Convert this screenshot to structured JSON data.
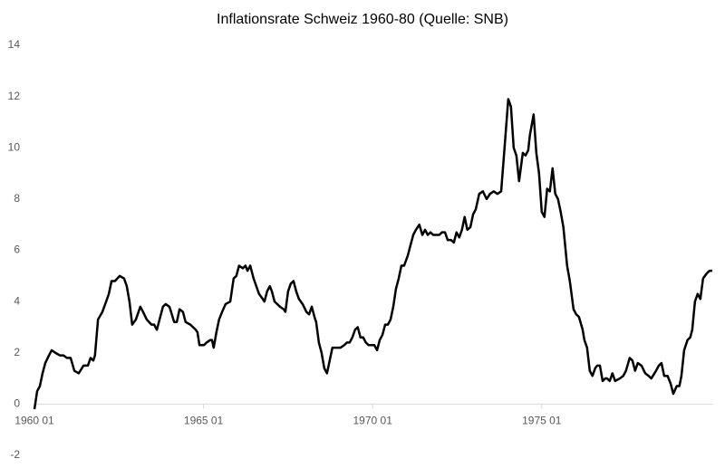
{
  "chart_data": {
    "type": "line",
    "title": "Inflationsrate Schweiz 1960-80 (Quelle: SNB)",
    "x": [
      1960.0,
      1960.08,
      1960.16,
      1960.24,
      1960.32,
      1960.43,
      1960.51,
      1960.62,
      1960.75,
      1960.86,
      1960.96,
      1961.07,
      1961.18,
      1961.31,
      1961.45,
      1961.58,
      1961.66,
      1961.74,
      1961.79,
      1961.88,
      1962.01,
      1962.12,
      1962.2,
      1962.28,
      1962.38,
      1962.52,
      1962.65,
      1962.73,
      1962.81,
      1962.89,
      1963.0,
      1963.13,
      1963.21,
      1963.32,
      1963.46,
      1963.54,
      1963.62,
      1963.72,
      1963.8,
      1963.88,
      1963.99,
      1964.04,
      1964.13,
      1964.21,
      1964.29,
      1964.39,
      1964.47,
      1964.61,
      1964.77,
      1964.82,
      1964.88,
      1965.01,
      1965.09,
      1965.2,
      1965.25,
      1965.3,
      1965.38,
      1965.46,
      1965.55,
      1965.65,
      1965.79,
      1965.89,
      1965.97,
      1966.05,
      1966.16,
      1966.24,
      1966.3,
      1966.38,
      1966.48,
      1966.56,
      1966.64,
      1966.75,
      1966.8,
      1966.88,
      1966.96,
      1967.02,
      1967.1,
      1967.18,
      1967.26,
      1967.37,
      1967.42,
      1967.5,
      1967.58,
      1967.66,
      1967.74,
      1967.82,
      1967.93,
      1968.04,
      1968.12,
      1968.2,
      1968.28,
      1968.33,
      1968.41,
      1968.49,
      1968.57,
      1968.65,
      1968.73,
      1968.81,
      1968.95,
      1969.05,
      1969.16,
      1969.24,
      1969.32,
      1969.4,
      1969.48,
      1969.56,
      1969.64,
      1969.72,
      1969.8,
      1969.88,
      1969.97,
      1970.05,
      1970.13,
      1970.21,
      1970.29,
      1970.37,
      1970.45,
      1970.53,
      1970.61,
      1970.69,
      1970.77,
      1970.85,
      1970.93,
      1971.04,
      1971.12,
      1971.2,
      1971.28,
      1971.38,
      1971.47,
      1971.55,
      1971.63,
      1971.71,
      1971.79,
      1971.89,
      1971.97,
      1972.05,
      1972.14,
      1972.22,
      1972.32,
      1972.4,
      1972.48,
      1972.56,
      1972.64,
      1972.72,
      1972.8,
      1972.89,
      1972.97,
      1973.05,
      1973.15,
      1973.26,
      1973.37,
      1973.47,
      1973.58,
      1973.69,
      1973.8,
      1973.9,
      1974.01,
      1974.09,
      1974.17,
      1974.25,
      1974.33,
      1974.44,
      1974.52,
      1974.6,
      1974.65,
      1974.76,
      1974.84,
      1974.92,
      1975.0,
      1975.08,
      1975.16,
      1975.24,
      1975.32,
      1975.4,
      1975.48,
      1975.56,
      1975.64,
      1975.75,
      1975.83,
      1975.94,
      1976.02,
      1976.1,
      1976.21,
      1976.26,
      1976.34,
      1976.42,
      1976.5,
      1976.58,
      1976.64,
      1976.72,
      1976.8,
      1976.88,
      1976.93,
      1977.01,
      1977.09,
      1977.17,
      1977.31,
      1977.41,
      1977.49,
      1977.6,
      1977.68,
      1977.76,
      1977.84,
      1977.95,
      1978.06,
      1978.16,
      1978.24,
      1978.38,
      1978.46,
      1978.54,
      1978.62,
      1978.72,
      1978.81,
      1978.89,
      1978.99,
      1979.07,
      1979.13,
      1979.21,
      1979.31,
      1979.39,
      1979.45,
      1979.53,
      1979.61,
      1979.69,
      1979.77,
      1979.88,
      1979.96,
      1980.04
    ],
    "values": [
      -0.2,
      0.5,
      0.7,
      1.2,
      1.6,
      1.9,
      2.1,
      2.0,
      1.9,
      1.9,
      1.8,
      1.8,
      1.3,
      1.2,
      1.5,
      1.5,
      1.8,
      1.7,
      1.9,
      3.3,
      3.6,
      4.0,
      4.3,
      4.8,
      4.8,
      5.0,
      4.9,
      4.6,
      4.0,
      3.1,
      3.3,
      3.8,
      3.6,
      3.3,
      3.1,
      3.1,
      2.9,
      3.4,
      3.8,
      3.9,
      3.8,
      3.6,
      3.2,
      3.2,
      3.7,
      3.6,
      3.2,
      3.1,
      2.9,
      2.8,
      2.3,
      2.3,
      2.4,
      2.5,
      2.5,
      2.2,
      2.8,
      3.3,
      3.6,
      3.9,
      4.0,
      4.9,
      5.0,
      5.4,
      5.3,
      5.4,
      5.2,
      5.4,
      4.9,
      4.6,
      4.3,
      4.1,
      4.0,
      4.4,
      4.6,
      4.4,
      4.0,
      3.9,
      3.8,
      3.7,
      3.6,
      4.4,
      4.7,
      4.8,
      4.4,
      4.1,
      3.9,
      3.6,
      3.5,
      3.8,
      3.4,
      3.2,
      2.4,
      2.0,
      1.4,
      1.2,
      1.7,
      2.2,
      2.2,
      2.2,
      2.3,
      2.4,
      2.4,
      2.6,
      2.9,
      3.0,
      2.6,
      2.6,
      2.4,
      2.3,
      2.3,
      2.3,
      2.1,
      2.5,
      2.7,
      3.1,
      3.1,
      3.3,
      3.8,
      4.5,
      4.9,
      5.4,
      5.4,
      5.8,
      6.2,
      6.6,
      6.8,
      7.0,
      6.6,
      6.8,
      6.6,
      6.7,
      6.6,
      6.6,
      6.6,
      6.7,
      6.7,
      6.4,
      6.4,
      6.3,
      6.7,
      6.5,
      6.8,
      7.3,
      6.8,
      6.9,
      7.4,
      7.6,
      8.2,
      8.3,
      8.0,
      8.2,
      8.3,
      8.2,
      8.3,
      10.0,
      11.9,
      11.6,
      10.0,
      9.7,
      8.7,
      9.8,
      9.7,
      9.9,
      10.5,
      11.3,
      9.8,
      9.0,
      7.5,
      7.3,
      8.4,
      8.3,
      9.2,
      8.2,
      8.0,
      7.5,
      6.9,
      5.4,
      4.8,
      3.7,
      3.5,
      3.4,
      2.9,
      2.5,
      2.2,
      1.3,
      1.1,
      1.4,
      1.5,
      1.5,
      0.9,
      1.0,
      1.0,
      0.9,
      1.2,
      0.9,
      1.0,
      1.1,
      1.3,
      1.8,
      1.7,
      1.3,
      1.6,
      1.5,
      1.2,
      1.1,
      1.0,
      1.3,
      1.5,
      1.6,
      1.1,
      1.1,
      0.8,
      0.4,
      0.7,
      0.7,
      1.1,
      2.1,
      2.5,
      2.6,
      2.9,
      4.0,
      4.3,
      4.1,
      4.9,
      5.1,
      5.2,
      5.2
    ],
    "color": "#000000",
    "xlim": [
      1960,
      1980.07
    ],
    "xticks": [
      {
        "value": 1960,
        "label": "1960 01"
      },
      {
        "value": 1965,
        "label": "1965 01"
      },
      {
        "value": 1970,
        "label": "1970 01"
      },
      {
        "value": 1975,
        "label": "1975 01"
      }
    ],
    "ylim": [
      -2,
      14
    ],
    "yticks": [
      -2,
      0,
      2,
      4,
      6,
      8,
      10,
      12,
      14
    ]
  }
}
